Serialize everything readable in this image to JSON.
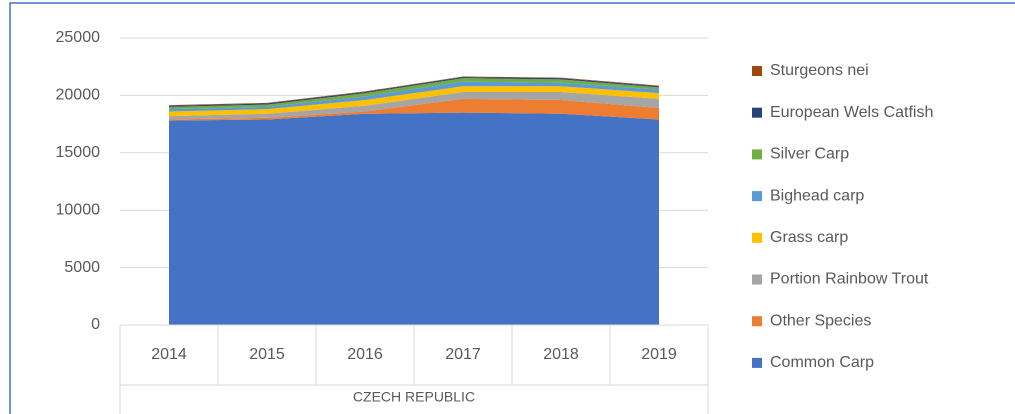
{
  "chart_data": {
    "type": "stacked_area",
    "categories": [
      "2014",
      "2015",
      "2016",
      "2017",
      "2018",
      "2019"
    ],
    "group_label": "CZECH REPUBLIC",
    "series": [
      {
        "name": "Common Carp",
        "color": "#4472c4",
        "values": [
          17800,
          17900,
          18400,
          18500,
          18400,
          17900
        ]
      },
      {
        "name": "Other Species",
        "color": "#ed7d31",
        "values": [
          100,
          150,
          200,
          1200,
          1200,
          1000
        ]
      },
      {
        "name": "Portion Rainbow Trout",
        "color": "#a5a5a5",
        "values": [
          300,
          350,
          500,
          600,
          700,
          800
        ]
      },
      {
        "name": "Grass carp",
        "color": "#ffc000",
        "values": [
          400,
          400,
          500,
          500,
          500,
          500
        ]
      },
      {
        "name": "Bighead carp",
        "color": "#5b9bd5",
        "values": [
          200,
          200,
          300,
          400,
          300,
          300
        ]
      },
      {
        "name": "Silver Carp",
        "color": "#70ad47",
        "values": [
          200,
          200,
          300,
          300,
          300,
          200
        ]
      },
      {
        "name": "European Wels Catfish",
        "color": "#264478",
        "values": [
          100,
          100,
          100,
          100,
          100,
          100
        ]
      },
      {
        "name": "Sturgeons nei",
        "color": "#9e480e",
        "values": [
          50,
          50,
          50,
          50,
          50,
          50
        ]
      }
    ],
    "ylim": [
      0,
      25000
    ],
    "yticks": [
      0,
      5000,
      10000,
      15000,
      20000,
      25000
    ],
    "grid": true,
    "legend": "right"
  }
}
